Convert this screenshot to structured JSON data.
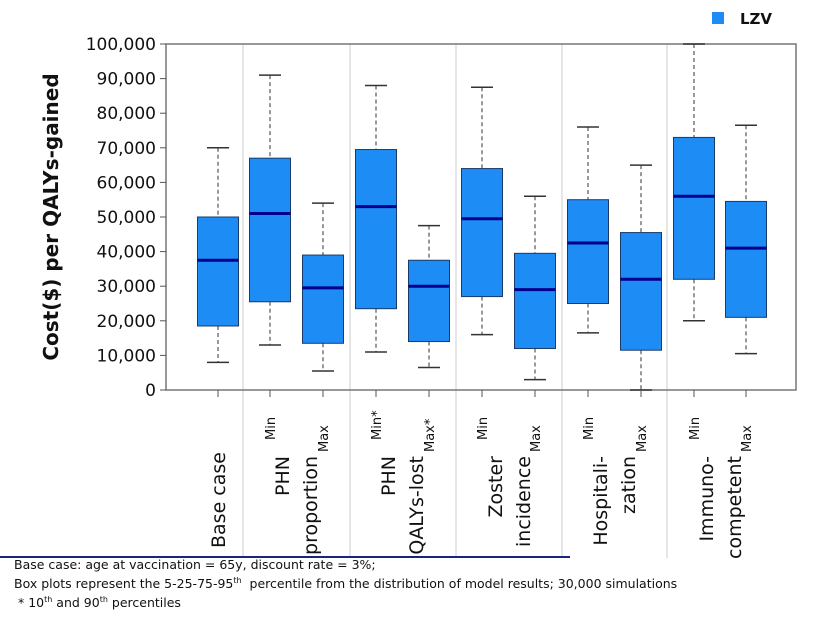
{
  "chart_data": {
    "type": "box",
    "ylabel": "Cost($) per QALYs-gained",
    "ylim": [
      0,
      100000
    ],
    "yticks": [
      "0",
      "10,000",
      "20,000",
      "30,000",
      "40,000",
      "50,000",
      "60,000",
      "70,000",
      "80,000",
      "90,000",
      "100,000"
    ],
    "legend": {
      "position": "top-right",
      "label": "LZV",
      "color": "#1E8CF5"
    },
    "median_color": "#00008B",
    "groups": [
      {
        "lines": [
          "Base case"
        ],
        "boxes": [
          {
            "label": "",
            "p5": 8000,
            "p25": 18500,
            "median": 37500,
            "p75": 50000,
            "p95": 70000
          }
        ]
      },
      {
        "lines": [
          "PHN",
          "proportion"
        ],
        "boxes": [
          {
            "label": "Min",
            "p5": 13000,
            "p25": 25500,
            "median": 51000,
            "p75": 67000,
            "p95": 91000
          },
          {
            "label": "Max",
            "p5": 5500,
            "p25": 13500,
            "median": 29500,
            "p75": 39000,
            "p95": 54000
          }
        ]
      },
      {
        "lines": [
          "PHN",
          "QALYs-lost"
        ],
        "boxes": [
          {
            "label": "Min*",
            "p5": 11000,
            "p25": 23500,
            "median": 53000,
            "p75": 69500,
            "p95": 88000
          },
          {
            "label": "Max*",
            "p5": 6500,
            "p25": 14000,
            "median": 30000,
            "p75": 37500,
            "p95": 47500
          }
        ]
      },
      {
        "lines": [
          "Zoster",
          "incidence"
        ],
        "boxes": [
          {
            "label": "Min",
            "p5": 16000,
            "p25": 27000,
            "median": 49500,
            "p75": 64000,
            "p95": 87500
          },
          {
            "label": "Max",
            "p5": 3000,
            "p25": 12000,
            "median": 29000,
            "p75": 39500,
            "p95": 56000
          }
        ]
      },
      {
        "lines": [
          "Hospitali-",
          "zation"
        ],
        "boxes": [
          {
            "label": "Min",
            "p5": 16500,
            "p25": 25000,
            "median": 42500,
            "p75": 55000,
            "p95": 76000
          },
          {
            "label": "Max",
            "p5": 0,
            "p25": 11500,
            "median": 32000,
            "p75": 45500,
            "p95": 65000
          }
        ]
      },
      {
        "lines": [
          "Immuno-",
          "competent"
        ],
        "boxes": [
          {
            "label": "Min",
            "p5": 20000,
            "p25": 32000,
            "median": 56000,
            "p75": 73000,
            "p95": 100000
          },
          {
            "label": "Max",
            "p5": 10500,
            "p25": 21000,
            "median": 41000,
            "p75": 54500,
            "p95": 76500
          }
        ]
      }
    ]
  },
  "footnotes": {
    "line1": "Base case: age at vaccination = 65y, discount rate = 3%;",
    "line2a": "Box plots represent the 5-25-75-95",
    "line2sup": "th",
    "line2b": "  percentile from the distribution of model results; 30,000 simulations",
    "line3a": " * 10",
    "line3sup": "th",
    "line3b": " and 90",
    "line3sup2": "th",
    "line3c": " percentiles"
  }
}
